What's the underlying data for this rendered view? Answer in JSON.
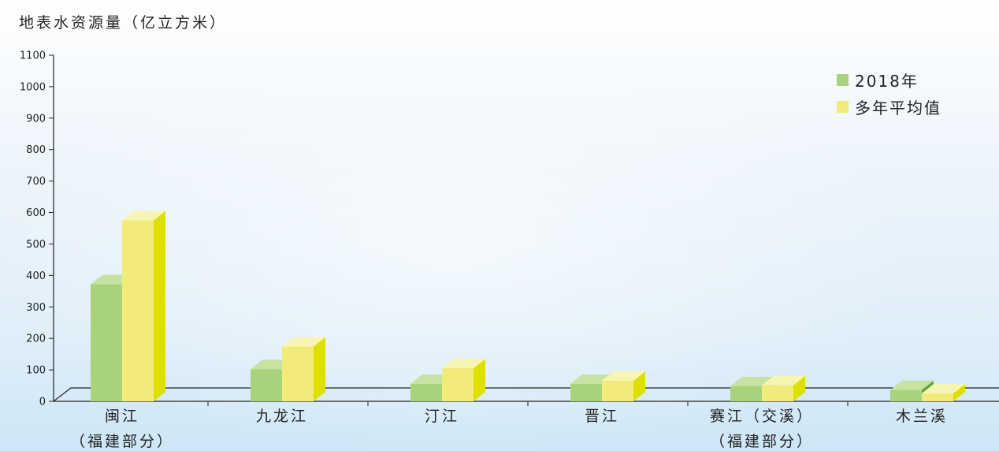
{
  "chart_data": {
    "type": "bar",
    "title": "地表水资源量（亿立方米）",
    "ylim": [
      0,
      1100
    ],
    "yticks": [
      0,
      100,
      200,
      300,
      400,
      500,
      600,
      700,
      800,
      900,
      1000,
      1100
    ],
    "categories": [
      [
        "闽江",
        "（福建部分）"
      ],
      [
        "九龙江"
      ],
      [
        "汀江"
      ],
      [
        "晋江"
      ],
      [
        "赛江（交溪）",
        "（福建部分）"
      ],
      [
        "木兰溪"
      ]
    ],
    "series": [
      {
        "name": "2018年",
        "values": [
          372,
          102,
          55,
          55,
          48,
          36
        ],
        "colors": {
          "front": "#a8d27c",
          "top": "#c6e3a2",
          "side": "#5aa83a"
        }
      },
      {
        "name": "多年平均值",
        "values": [
          575,
          174,
          105,
          65,
          51,
          25
        ],
        "colors": {
          "front": "#f1ec7a",
          "top": "#f8f5b3",
          "side": "#dee100"
        }
      }
    ],
    "legend_position": "top-right",
    "grid": false
  }
}
